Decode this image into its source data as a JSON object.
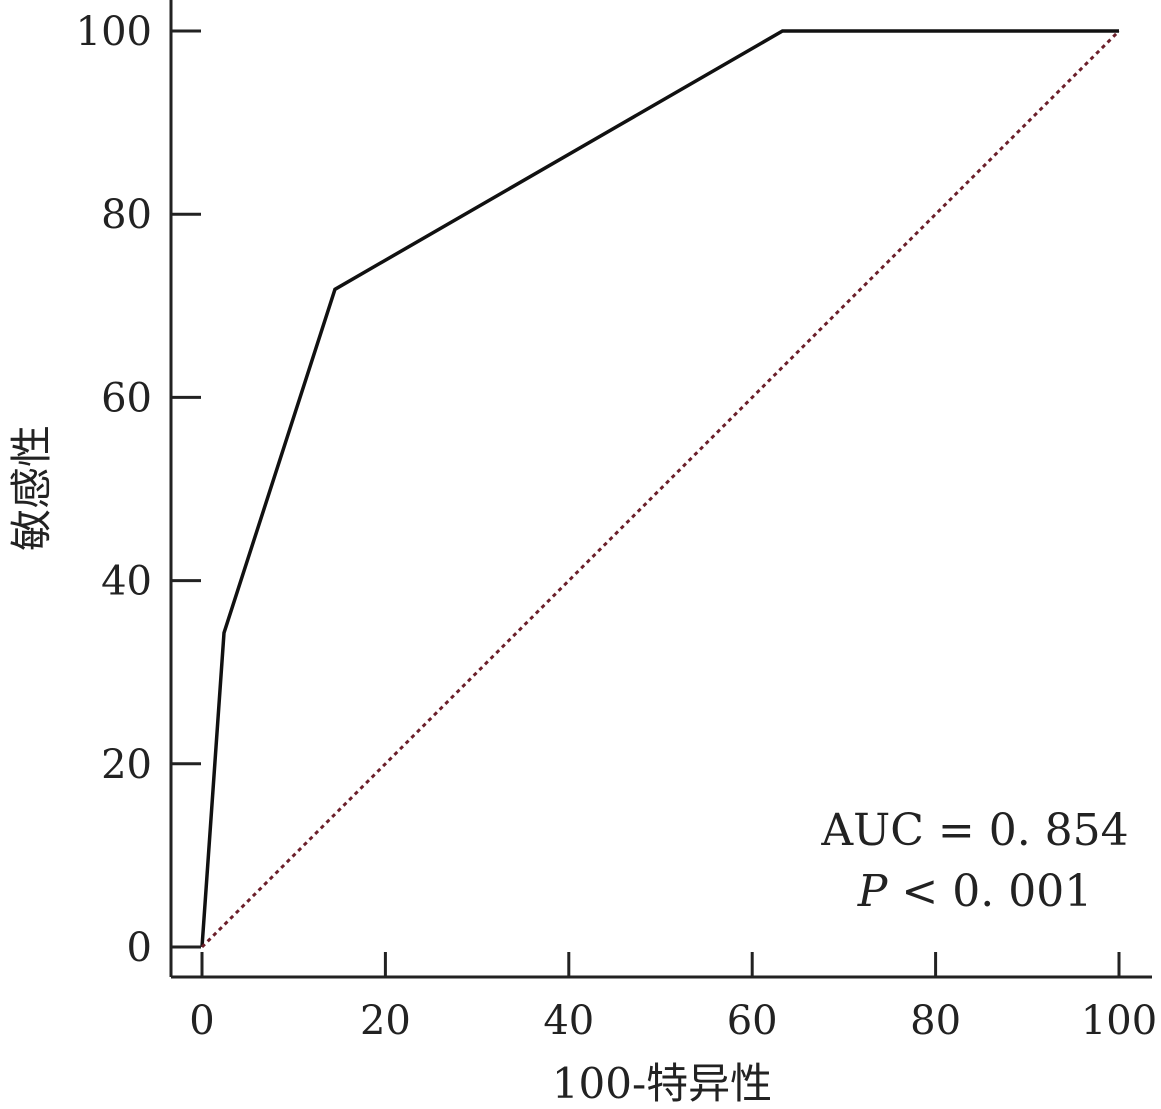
{
  "chart_data": {
    "type": "line",
    "title": "",
    "xlabel": "100-特异性",
    "ylabel": "敏感性",
    "xlim": [
      0,
      100
    ],
    "ylim": [
      0,
      100
    ],
    "x_ticks": [
      0,
      20,
      40,
      60,
      80,
      100
    ],
    "y_ticks": [
      0,
      20,
      40,
      60,
      80,
      100
    ],
    "x_tick_labels": [
      "0",
      "20",
      "40",
      "60",
      "80",
      "100"
    ],
    "y_tick_labels": [
      "0",
      "20",
      "40",
      "60",
      "80",
      "100"
    ],
    "grid": false,
    "series": [
      {
        "style": "solid",
        "color": "#111111",
        "x": [
          0,
          2.4,
          14.5,
          63.3,
          100
        ],
        "y": [
          0,
          34.3,
          71.8,
          100,
          100
        ]
      },
      {
        "style": "dotted",
        "color": "#6b1f2a",
        "x": [
          0,
          100
        ],
        "y": [
          0,
          100
        ]
      }
    ],
    "annotations": {
      "auc": "AUC = 0. 854",
      "p_symbol": "P",
      "p_rest": " < 0. 001"
    }
  }
}
